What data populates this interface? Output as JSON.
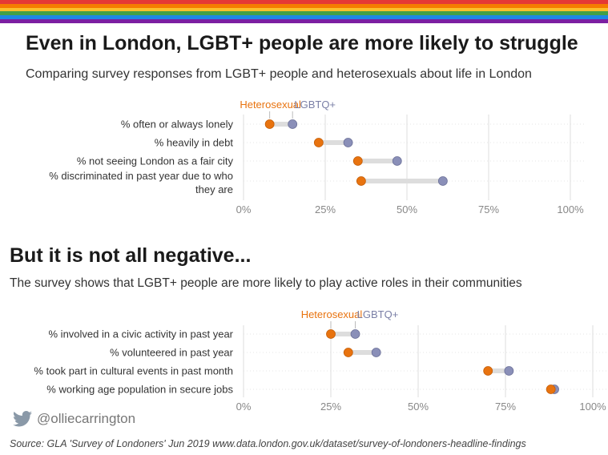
{
  "colors": {
    "heterosexual": "#e8730f",
    "lgbtq": "#8a8fb8",
    "connector": "#dddddd",
    "grid": "#dedede",
    "rainbow": [
      "#e53935",
      "#f57c00",
      "#fbc02d",
      "#43a047",
      "#1e88e5",
      "#7b1fa2"
    ]
  },
  "header": {
    "title": "Even in London, LGBT+ people are more likely to struggle",
    "subtitle": "Comparing survey responses from LGBT+ people and heterosexuals about life in London"
  },
  "section2": {
    "title": "But it is not all negative...",
    "subtitle": "The survey shows that LGBT+ people are more likely to play active roles in their communities"
  },
  "footer": {
    "twitter_icon": "twitter-bird-icon",
    "handle": "@olliecarrington",
    "source": "Source: GLA 'Survey of Londoners' Jun 2019 www.data.london.gov.uk/dataset/survey-of-londoners-headline-findings"
  },
  "chart_data": [
    {
      "type": "dumbbell",
      "categories": [
        "% often or always lonely",
        "% heavily in debt",
        "% not seeing London as a fair city",
        "% discriminated in past year due to who they are"
      ],
      "series": [
        {
          "name": "Heterosexual",
          "values": [
            8,
            23,
            35,
            36
          ]
        },
        {
          "name": "LGBTQ+",
          "values": [
            15,
            32,
            47,
            61
          ]
        }
      ],
      "xlim": [
        0,
        100
      ],
      "ticks": [
        "0%",
        "25%",
        "50%",
        "75%",
        "100%"
      ],
      "legend": "top"
    },
    {
      "type": "dumbbell",
      "categories": [
        "% involved in a civic activity in past year",
        "% volunteered in past year",
        "% took part in cultural events in past month",
        "% working age population in secure jobs"
      ],
      "series": [
        {
          "name": "Heterosexual",
          "values": [
            25,
            30,
            70,
            88
          ]
        },
        {
          "name": "LGBTQ+",
          "values": [
            32,
            38,
            76,
            89
          ]
        }
      ],
      "xlim": [
        0,
        100
      ],
      "ticks": [
        "0%",
        "25%",
        "50%",
        "75%",
        "100%"
      ],
      "legend": "top"
    }
  ]
}
